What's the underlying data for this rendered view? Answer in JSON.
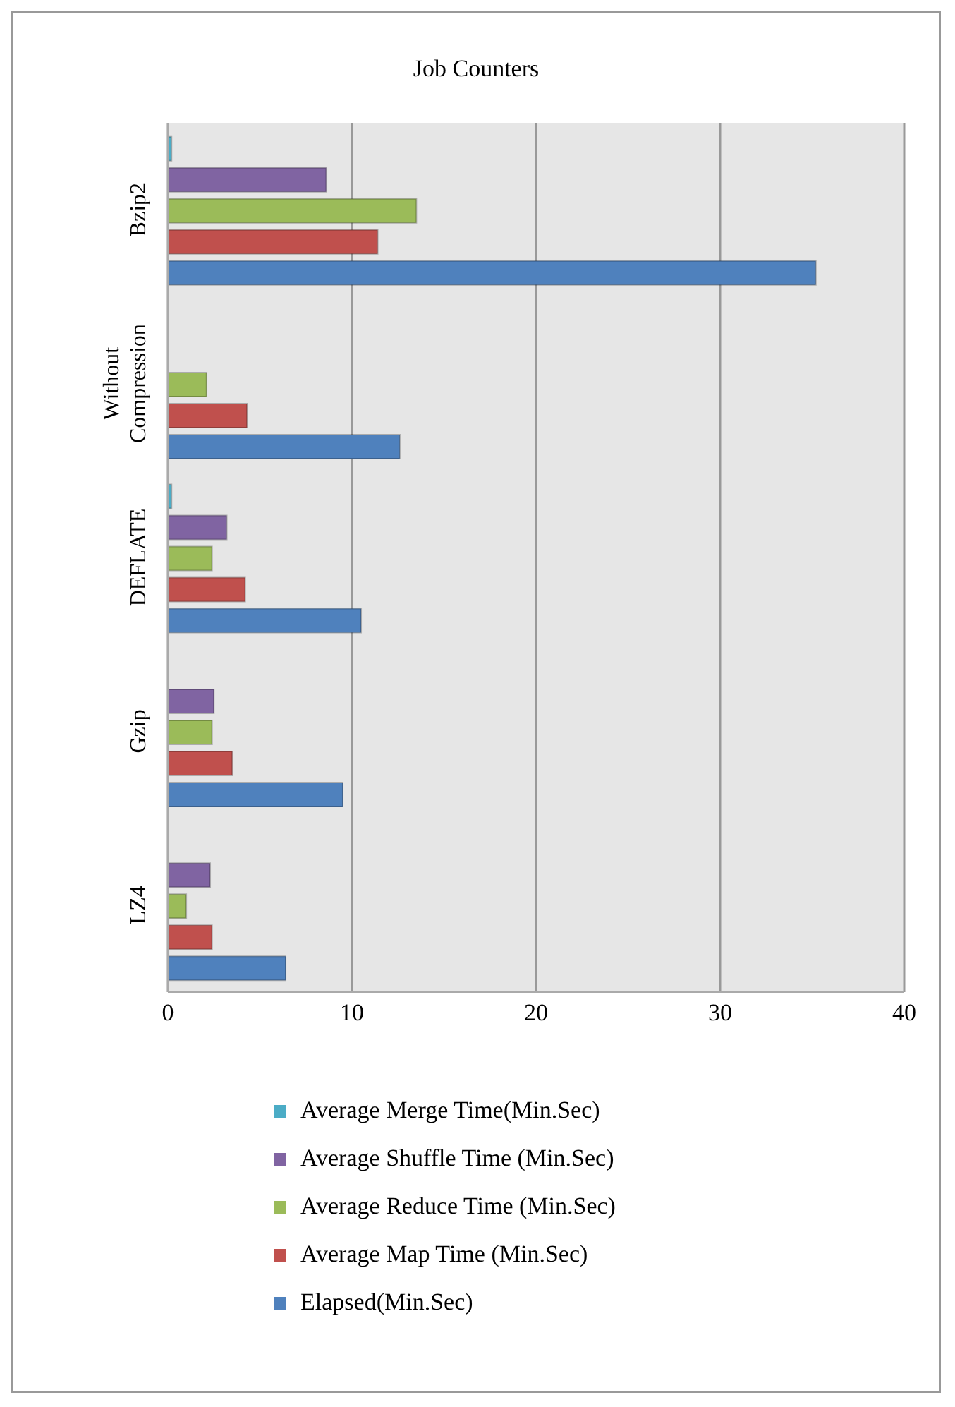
{
  "chart_data": {
    "type": "bar",
    "orientation": "horizontal",
    "title": "Job Counters",
    "categories": [
      "Bzip2",
      "Without Compression",
      "DEFLATE",
      "Gzip",
      "LZ4"
    ],
    "series": [
      {
        "name": "Average Merge Time(Min.Sec)",
        "color": "#4bacc6",
        "values": [
          0.2,
          0,
          0.2,
          0,
          0
        ]
      },
      {
        "name": "Average Shuffle Time (Min.Sec)",
        "color": "#8064a2",
        "values": [
          8.6,
          0,
          3.2,
          2.5,
          2.3
        ]
      },
      {
        "name": "Average Reduce Time (Min.Sec)",
        "color": "#9bbb59",
        "values": [
          13.5,
          2.1,
          2.4,
          2.4,
          1.0
        ]
      },
      {
        "name": "Average Map Time (Min.Sec)",
        "color": "#c0504d",
        "values": [
          11.4,
          4.3,
          4.2,
          3.5,
          2.4
        ]
      },
      {
        "name": "Elapsed(Min.Sec)",
        "color": "#4f81bd",
        "values": [
          35.2,
          12.6,
          10.5,
          9.5,
          6.4
        ]
      }
    ],
    "xlim": [
      0,
      40
    ],
    "xticks": [
      0,
      10,
      20,
      30,
      40
    ],
    "grid": "x",
    "legend": "bottom"
  }
}
